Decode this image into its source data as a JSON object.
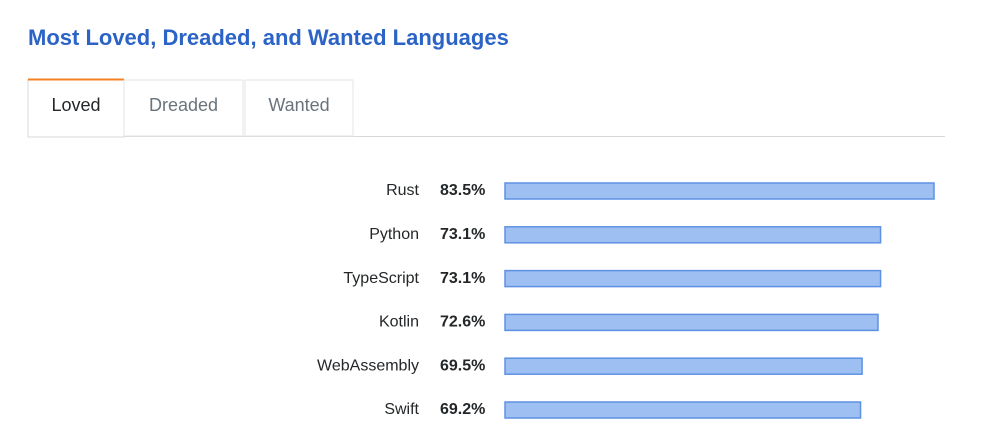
{
  "chart_data": {
    "type": "bar",
    "orientation": "horizontal",
    "title": "Most Loved, Dreaded, and Wanted Languages",
    "tabs": [
      "Loved",
      "Dreaded",
      "Wanted"
    ],
    "categories": [
      "Rust",
      "Python",
      "TypeScript",
      "Kotlin",
      "WebAssembly",
      "Swift"
    ],
    "values": [
      83.5,
      73.1,
      73.1,
      72.6,
      69.5,
      69.2
    ],
    "value_labels": [
      "83.5%",
      "73.1%",
      "73.1%",
      "72.6%",
      "69.5%",
      "69.2%"
    ],
    "color": "#9dbff2",
    "edge_color": "#5e91e3"
  }
}
